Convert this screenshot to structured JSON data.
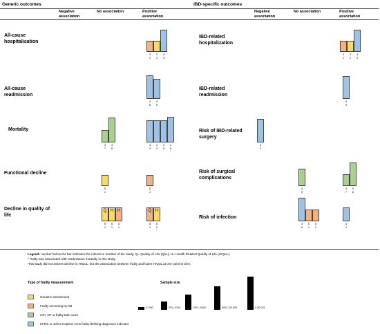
{
  "colors": {
    "yellow": "#FFD966",
    "orange": "#F4B183",
    "green": "#A9D18E",
    "blue": "#9DC3E6",
    "line": "#555555"
  },
  "header": {
    "generic": "Generic outcomes",
    "ibd": "IBD-specific outcomes",
    "neg": "Negative association",
    "none": "No association",
    "pos": "Positive association"
  },
  "rows": {
    "left": [
      "All-cause hospitalisation",
      "All-cause readmission",
      "Mortality",
      "Functional decline",
      "Decline in quality of life"
    ],
    "right": [
      "IBD-related hospitalization",
      "IBD-related readmission",
      "Risk of IBD-related surgery",
      "Risk of surgical complications",
      "Risk of infection"
    ]
  },
  "bar_groups": [
    {
      "name": "lh-pos",
      "bars": [
        {
          "color": "orange",
          "h": 1,
          "ref": "3\n1"
        },
        {
          "color": "yellow",
          "h": 1,
          "ref": "3\n1"
        },
        {
          "color": "blue",
          "h": 2,
          "ref": "4\n3"
        }
      ]
    },
    {
      "name": "lr-pos",
      "bars": [
        {
          "color": "blue",
          "h": 2,
          "ref": "4\n6"
        },
        {
          "color": "blue",
          "h": 1.7,
          "ref": "4\n0"
        }
      ]
    },
    {
      "name": "lm-none",
      "bars": [
        {
          "color": "green",
          "h": 1,
          "ref": "4\n7"
        },
        {
          "color": "green",
          "h": 2,
          "ref": "4\n8"
        }
      ]
    },
    {
      "name": "lm-pos",
      "bars": [
        {
          "color": "blue",
          "h": 2,
          "ref": "4\n3"
        },
        {
          "color": "blue",
          "h": 2,
          "ref": "4\n2"
        },
        {
          "color": "blue",
          "h": 2,
          "ref": "4\n0"
        },
        {
          "color": "blue",
          "h": 2.3,
          "ref": "4\n6\n^"
        }
      ]
    },
    {
      "name": "lf-none",
      "bars": [
        {
          "color": "yellow",
          "h": 1,
          "ref": "5\n1"
        }
      ]
    },
    {
      "name": "lf-pos",
      "bars": [
        {
          "color": "orange",
          "h": 1,
          "ref": "5\n1"
        }
      ]
    },
    {
      "name": "lq-neg",
      "bars": [
        {
          "color": "yellow",
          "h": 1,
          "label": "Q",
          "ref": "5\n1"
        },
        {
          "color": "yellow",
          "h": 1,
          "label": "H",
          "ref": "5\n1"
        },
        {
          "color": "orange",
          "h": 1,
          "label": "H",
          "ref": "5\n1"
        }
      ]
    },
    {
      "name": "lq-pos",
      "bars": [
        {
          "color": "orange",
          "h": 1,
          "label": "Q",
          "ref": "5\n1"
        },
        {
          "color": "yellow",
          "h": 1,
          "label": "H",
          "ref": "5\n0\n*"
        }
      ]
    },
    {
      "name": "rh-pos",
      "bars": [
        {
          "color": "orange",
          "h": 1,
          "ref": "3\n1"
        },
        {
          "color": "yellow",
          "h": 1,
          "ref": "3\n1"
        },
        {
          "color": "blue",
          "h": 2,
          "ref": "4\n2"
        }
      ]
    },
    {
      "name": "rr-pos",
      "bars": [
        {
          "color": "blue",
          "h": 1,
          "ref": "4\n0"
        }
      ]
    },
    {
      "name": "rs-neg",
      "bars": [
        {
          "color": "blue",
          "h": 1,
          "ref": "4\n0"
        }
      ]
    },
    {
      "name": "rc-none",
      "bars": [
        {
          "color": "green",
          "h": 1,
          "ref": "4\n9"
        }
      ]
    },
    {
      "name": "rc-pos",
      "bars": [
        {
          "color": "green",
          "h": 1,
          "ref": "4\n7"
        },
        {
          "color": "green",
          "h": 2,
          "ref": "4\n8"
        }
      ]
    },
    {
      "name": "ri-none",
      "bars": [
        {
          "color": "blue",
          "h": 1,
          "ref": "3\n9"
        },
        {
          "color": "orange",
          "h": 0.5,
          "ref": "5\n1"
        },
        {
          "color": "orange",
          "h": 0.5,
          "ref": "5\n1"
        }
      ]
    },
    {
      "name": "ri-pos",
      "bars": [
        {
          "color": "blue",
          "h": 1,
          "ref": "4\n1"
        }
      ]
    }
  ],
  "notes": {
    "legend_label": "Legend:",
    "legend_text": " number below the bar indicates the reference number of the study; Q= Quality of Life (QoL); H= Health Related Quality of Life (HrQoL).",
    "caret_note": "^ frailty was associated with readmission mortality in this study.",
    "star_note": "*this study did not assess decline in HrQoL, but the association between frailty and lower HrQoL at one point in time."
  },
  "legend": {
    "title": "Type of frailty measurement",
    "items": [
      {
        "color": "yellow",
        "label": "Geriatric assessment"
      },
      {
        "color": "orange",
        "label": "Frailty screening by G8"
      },
      {
        "color": "green",
        "label": "mFI, sFI or frailty trait count"
      },
      {
        "color": "blue",
        "label": "HFRS or Johns Hopkins ACG frailty-defining diagnoses indicator"
      }
    ]
  },
  "sample_size": {
    "title": "Sample size",
    "items": [
      {
        "label": "0–250",
        "level": 1
      },
      {
        "label": "251–1000",
        "level": 2
      },
      {
        "label": "1001–5000",
        "level": 3
      },
      {
        "label": "5001–50,000",
        "level": 4
      },
      {
        "label": "≥ 50,001",
        "level": 5
      }
    ]
  }
}
